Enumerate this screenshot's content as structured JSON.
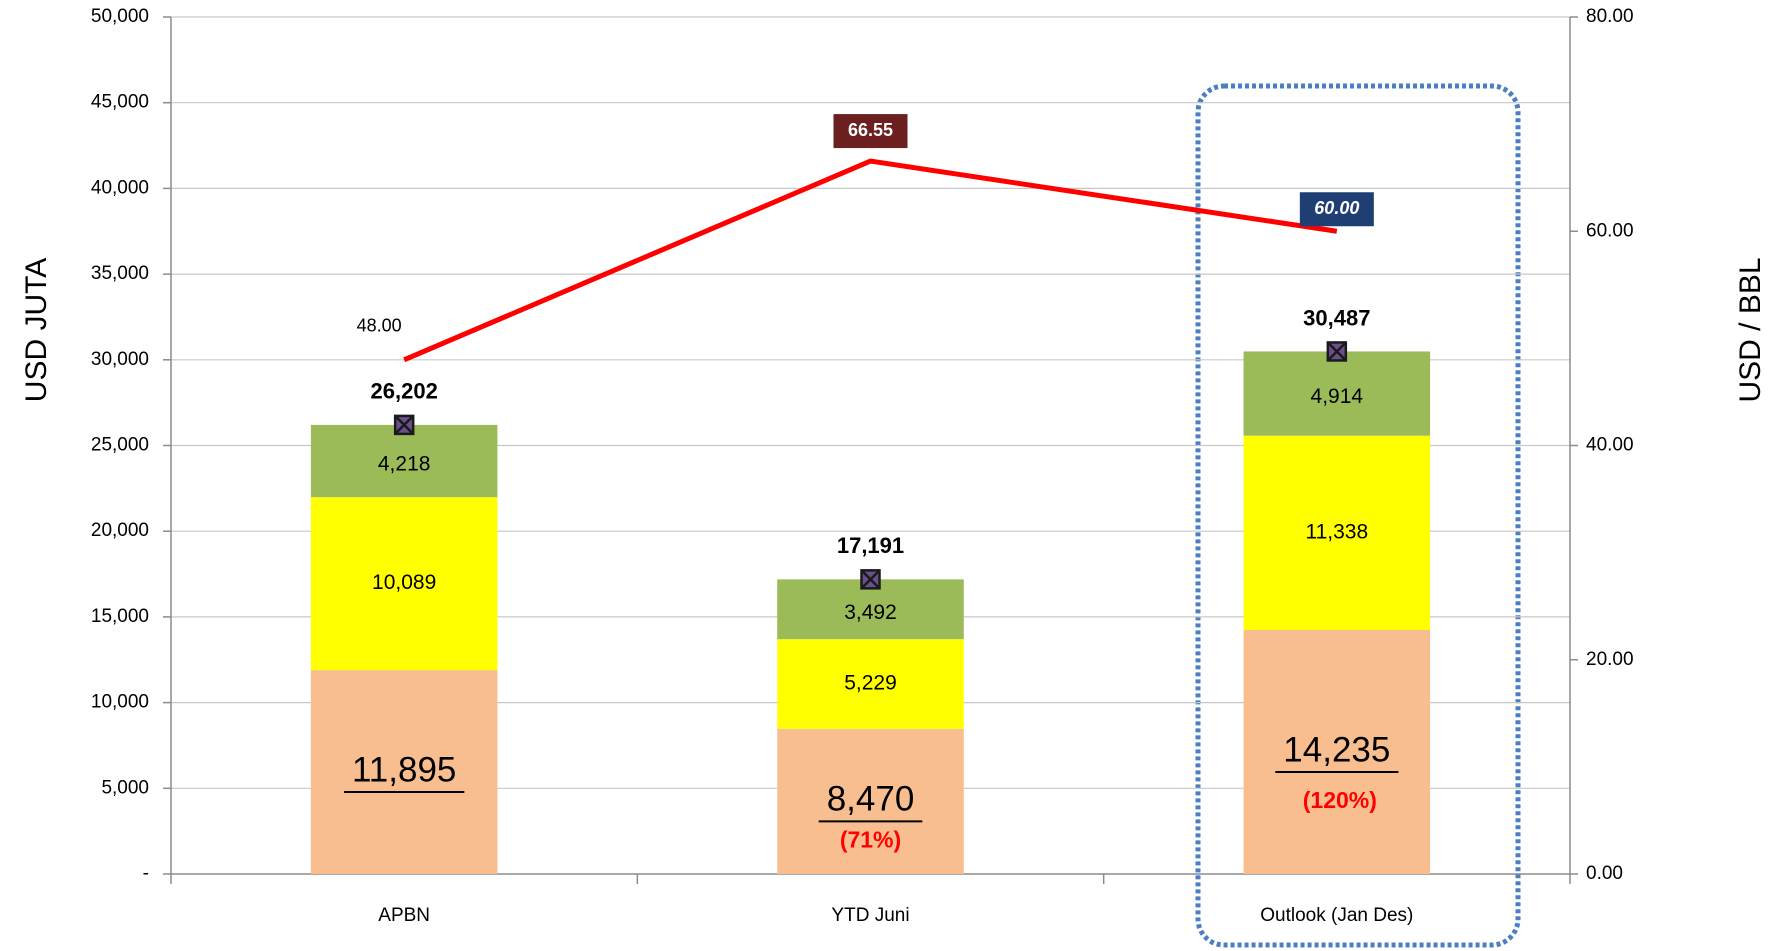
{
  "chart_data": {
    "type": "bar",
    "stacked": true,
    "categories": [
      "APBN",
      "YTD Juni",
      "Outlook (Jan Des)"
    ],
    "y_label": "USD JUTA",
    "y2_label": "USD / BBL",
    "ylim": [
      0,
      50000
    ],
    "yticks": [
      {
        "value": 0,
        "label": "-"
      },
      {
        "value": 5000,
        "label": "5,000"
      },
      {
        "value": 10000,
        "label": "10,000"
      },
      {
        "value": 15000,
        "label": "15,000"
      },
      {
        "value": 20000,
        "label": "20,000"
      },
      {
        "value": 25000,
        "label": "25,000"
      },
      {
        "value": 30000,
        "label": "30,000"
      },
      {
        "value": 35000,
        "label": "35,000"
      },
      {
        "value": 40000,
        "label": "40,000"
      },
      {
        "value": 45000,
        "label": "45,000"
      },
      {
        "value": 50000,
        "label": "50,000"
      }
    ],
    "y2lim": [
      0,
      80
    ],
    "y2ticks": [
      {
        "value": 0,
        "label": "0.00"
      },
      {
        "value": 20,
        "label": "20.00"
      },
      {
        "value": 40,
        "label": "40.00"
      },
      {
        "value": 60,
        "label": "60.00"
      },
      {
        "value": 80,
        "label": "80.00"
      }
    ],
    "grid": true,
    "series": [
      {
        "type": "bar",
        "color": "#f9be8f",
        "values": [
          11895,
          8470,
          14235
        ],
        "value_labels": [
          "11,895",
          "8,470",
          "14,235"
        ]
      },
      {
        "type": "bar",
        "color": "#ffff00",
        "values": [
          10089,
          5229,
          11338
        ],
        "value_labels": [
          "10,089",
          "5,229",
          "11,338"
        ]
      },
      {
        "type": "bar",
        "color": "#9bbb59",
        "values": [
          4218,
          3492,
          4914
        ],
        "value_labels": [
          "4,218",
          "3,492",
          "4,914"
        ]
      },
      {
        "type": "line",
        "axis": "y2",
        "color": "#ff0000",
        "values": [
          48,
          66.55,
          60
        ],
        "value_labels": [
          "48.00",
          "66.55",
          "60.00"
        ]
      },
      {
        "type": "marker",
        "color": "#1a1a1a",
        "values": [
          26202,
          17191,
          30487
        ],
        "value_labels": [
          "26,202",
          "17,191",
          "30,487"
        ]
      }
    ],
    "percent_labels": [
      null,
      "(71%)",
      "(120%)"
    ]
  }
}
